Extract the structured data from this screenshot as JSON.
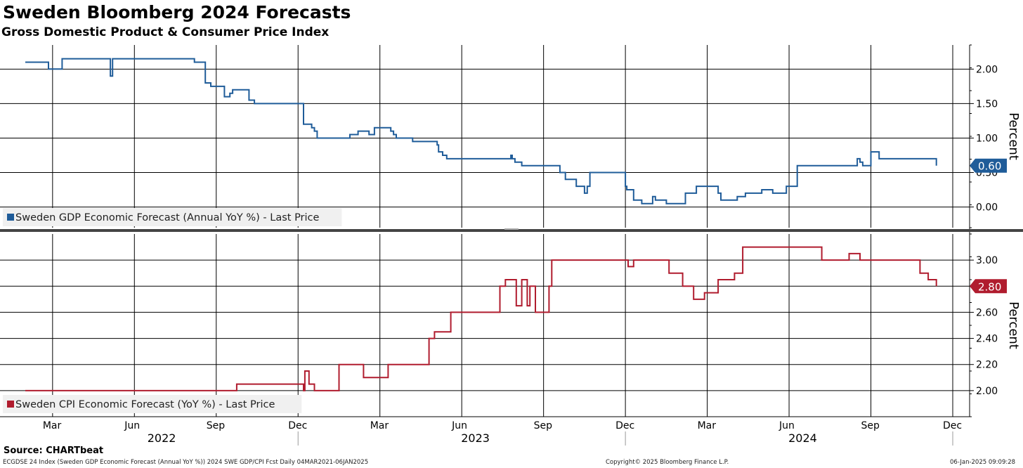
{
  "header": {
    "title": "Sweden Bloomberg 2024 Forecasts",
    "subtitle": "Gross Domestic Product & Consumer Price Index"
  },
  "footer": {
    "source": "Source: CHARTbeat",
    "index_info": "ECGDSE 24 Index (Sweden GDP Economic Forecast (Annual YoY %)) 2024 SWE GDP/CPI Fcst  Daily 04MAR2021-06JAN2025",
    "copyright": "Copyright© 2025 Bloomberg Finance L.P.",
    "timestamp": "06-Jan-2025 09:09:28"
  },
  "colors": {
    "gdp": "#1f5c99",
    "cpi": "#b01c2e",
    "grid": "#000000",
    "legend_bg": "#f0f0f0"
  },
  "chart_data": [
    {
      "type": "line",
      "panel": "top",
      "ylabel": "Percent",
      "ylim": [
        -0.3,
        2.35
      ],
      "yticks": [
        "2.00",
        "1.50",
        "1.00",
        "0.50",
        "0.00"
      ],
      "tick_values": [
        2.0,
        1.5,
        1.0,
        0.5,
        0.0
      ],
      "last_value_label": "0.60",
      "legend_label": "Sweden GDP Economic Forecast (Annual YoY %) - Last Price",
      "series": [
        {
          "name": "Sweden GDP Economic Forecast (Annual YoY %) - Last Price",
          "x": [
            0,
            0.8,
            0.85,
            1.3,
            1.35,
            3.1,
            3.12,
            3.2,
            3.25,
            6.2,
            6.3,
            6.4,
            6.6,
            6.8,
            7.3,
            7.5,
            7.6,
            8.1,
            8.2,
            8.4,
            8.6,
            10.2,
            10.5,
            10.6,
            10.7,
            11.8,
            11.9,
            12.2,
            12.6,
            12.8,
            13.4,
            13.5,
            13.6,
            13.9,
            14.2,
            15.1,
            15.15,
            15.3,
            15.45,
            17.7,
            17.8,
            17.85,
            17.95,
            18.2,
            18.3,
            19.6,
            19.8,
            20.2,
            20.5,
            20.6,
            20.7,
            22.0,
            22.05,
            22.3,
            22.6,
            23.0,
            23.1,
            23.5,
            24.2,
            24.3,
            24.4,
            24.6,
            25.4,
            25.5,
            26.0,
            26.1,
            26.4,
            27.0,
            27.4,
            27.9,
            28.0,
            28.3,
            30.5,
            30.6,
            30.7,
            30.8,
            31.0,
            31.3,
            32.8,
            33.4
          ],
          "values": [
            2.1,
            2.1,
            2.0,
            2.0,
            2.15,
            2.15,
            1.9,
            2.15,
            2.15,
            2.1,
            2.1,
            2.1,
            1.8,
            1.75,
            1.6,
            1.65,
            1.7,
            1.7,
            1.55,
            1.5,
            1.5,
            1.2,
            1.15,
            1.1,
            1.0,
            1.0,
            1.05,
            1.1,
            1.05,
            1.15,
            1.1,
            1.05,
            1.0,
            1.0,
            0.95,
            0.9,
            0.8,
            0.75,
            0.7,
            0.7,
            0.75,
            0.7,
            0.65,
            0.6,
            0.6,
            0.5,
            0.4,
            0.3,
            0.2,
            0.3,
            0.5,
            0.3,
            0.25,
            0.1,
            0.05,
            0.15,
            0.1,
            0.05,
            0.2,
            0.2,
            0.2,
            0.3,
            0.2,
            0.1,
            0.1,
            0.15,
            0.2,
            0.25,
            0.2,
            0.3,
            0.3,
            0.6,
            0.7,
            0.65,
            0.6,
            0.6,
            0.8,
            0.7,
            0.7,
            0.6
          ]
        }
      ]
    },
    {
      "type": "line",
      "panel": "bottom",
      "ylabel": "Percent",
      "ylim": [
        1.8,
        3.2
      ],
      "yticks": [
        "3.00",
        "2.80",
        "2.60",
        "2.40",
        "2.20",
        "2.00"
      ],
      "tick_values": [
        3.0,
        2.8,
        2.6,
        2.4,
        2.2,
        2.0
      ],
      "last_value_label": "2.80",
      "legend_label": "Sweden CPI Economic Forecast (YoY %) - Last Price",
      "series": [
        {
          "name": "Sweden CPI Economic Forecast (YoY %) - Last Price",
          "x": [
            0,
            7.7,
            7.75,
            10.2,
            10.25,
            10.4,
            10.6,
            10.8,
            11.5,
            11.6,
            12.4,
            12.6,
            13.3,
            14.2,
            14.8,
            15.0,
            15.3,
            15.6,
            16.1,
            16.6,
            17.4,
            17.6,
            18.0,
            18.2,
            18.4,
            18.5,
            18.7,
            19.2,
            19.3,
            22.0,
            22.1,
            22.3,
            22.9,
            23.6,
            24.1,
            24.5,
            24.9,
            25.4,
            26.0,
            26.3,
            28.9,
            29.2,
            29.5,
            30.2,
            30.6,
            32.1,
            32.8,
            33.1,
            33.4
          ],
          "values": [
            2.0,
            2.0,
            2.05,
            2.0,
            2.15,
            2.05,
            2.0,
            2.0,
            2.2,
            2.2,
            2.1,
            2.1,
            2.2,
            2.2,
            2.4,
            2.45,
            2.45,
            2.6,
            2.6,
            2.6,
            2.8,
            2.85,
            2.65,
            2.85,
            2.65,
            2.8,
            2.6,
            2.8,
            3.0,
            3.0,
            2.95,
            3.0,
            3.0,
            2.9,
            2.8,
            2.7,
            2.75,
            2.85,
            2.9,
            3.1,
            3.1,
            3.0,
            3.0,
            3.05,
            3.0,
            3.0,
            2.9,
            2.85,
            2.8
          ]
        }
      ]
    },
    {
      "type": "axis",
      "panel": "x-axis",
      "xlim": [
        0,
        34
      ],
      "month_ticks": [
        {
          "label": "Mar",
          "x": 1.0
        },
        {
          "label": "Jun",
          "x": 4.0
        },
        {
          "label": "Sep",
          "x": 7.0
        },
        {
          "label": "Dec",
          "x": 10.0
        },
        {
          "label": "Mar",
          "x": 13.0
        },
        {
          "label": "Jun",
          "x": 16.0
        },
        {
          "label": "Sep",
          "x": 19.0
        },
        {
          "label": "Dec",
          "x": 22.0
        },
        {
          "label": "Mar",
          "x": 25.0
        },
        {
          "label": "Jun",
          "x": 28.0
        },
        {
          "label": "Sep",
          "x": 31.0
        },
        {
          "label": "Dec",
          "x": 34.0
        }
      ],
      "years": [
        {
          "label": "2022",
          "x": 5.0
        },
        {
          "label": "2023",
          "x": 16.5
        },
        {
          "label": "2024",
          "x": 28.5
        }
      ],
      "year_bounds": [
        10.0,
        22.0,
        34.0
      ]
    }
  ]
}
